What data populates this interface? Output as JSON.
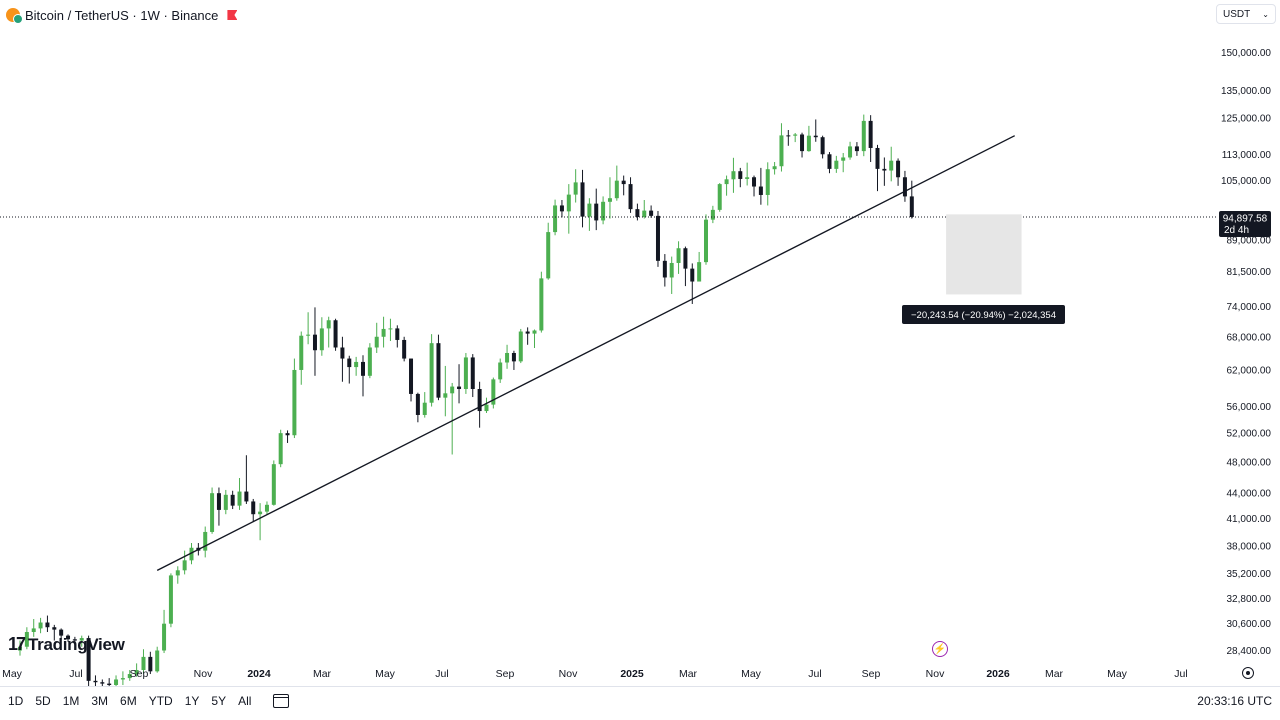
{
  "header": {
    "symbol": "Bitcoin / TetherUS · 1W · Binance",
    "logo_icon": "bitcoin-icon",
    "flag_icon": "flag-icon"
  },
  "currency": {
    "label": "USDT",
    "icon": "chevron-down-icon"
  },
  "watermark": {
    "text": "TradingView"
  },
  "price_label": {
    "value": "94,897.58",
    "countdown": "2d 4h"
  },
  "measure": {
    "text": "−20,243.54 (−20.94%) −2,024,354"
  },
  "bottom": {
    "ranges": [
      "1D",
      "5D",
      "1M",
      "3M",
      "6M",
      "YTD",
      "1Y",
      "5Y",
      "All"
    ],
    "time": "20:33:16 UTC"
  },
  "colors": {
    "up": "#4caf50",
    "down": "#131722",
    "line": "#131722",
    "measure_fill": "#e6e6e6"
  },
  "chart_data": {
    "type": "candlestick",
    "scale": "log",
    "ylim": [
      27000,
      160000
    ],
    "y_ticks": [
      150000,
      135000,
      125000,
      113000,
      105000,
      97000,
      89000,
      81500,
      74000,
      68000,
      62000,
      56000,
      52000,
      48000,
      44000,
      41000,
      38000,
      35200,
      32800,
      30600,
      28400
    ],
    "y_tick_labels": [
      "150,000.00",
      "135,000.00",
      "125,000.00",
      "113,000.00",
      "105,000.00",
      "97,000.00",
      "89,000.00",
      "81,500.00",
      "74,000.00",
      "68,000.00",
      "62,000.00",
      "56,000.00",
      "52,000.00",
      "48,000.00",
      "44,000.00",
      "41,000.00",
      "38,000.00",
      "35,200.00",
      "32,800.00",
      "30,600.00",
      "28,400.00"
    ],
    "x_ticks": [
      "May",
      "Jul",
      "Sep",
      "Nov",
      "2024",
      "Mar",
      "May",
      "Jul",
      "Sep",
      "Nov",
      "2025",
      "Mar",
      "May",
      "Jul",
      "Sep",
      "Nov",
      "2026",
      "Mar",
      "May",
      "Jul"
    ],
    "x_tick_bold": [
      "2024",
      "2025",
      "2026"
    ],
    "candles": [
      [
        28400,
        28700,
        29200,
        28000
      ],
      [
        28700,
        29900,
        30300,
        28500
      ],
      [
        29900,
        30200,
        31000,
        29500
      ],
      [
        30200,
        30700,
        31100,
        29800
      ],
      [
        30700,
        30300,
        31300,
        29900
      ],
      [
        30300,
        30100,
        30500,
        29200
      ],
      [
        30100,
        29600,
        30200,
        29300
      ],
      [
        29600,
        29300,
        29700,
        29100
      ],
      [
        29300,
        29200,
        29500,
        28900
      ],
      [
        29200,
        29400,
        29600,
        28700
      ],
      [
        29400,
        26100,
        29600,
        25400
      ],
      [
        26100,
        26000,
        26500,
        25600
      ],
      [
        26000,
        25900,
        26200,
        25700
      ],
      [
        25900,
        25800,
        26300,
        25300
      ],
      [
        25800,
        26200,
        26500,
        25400
      ],
      [
        26200,
        26300,
        26800,
        25800
      ],
      [
        26300,
        26600,
        26900,
        26100
      ],
      [
        26600,
        26900,
        27400,
        26400
      ],
      [
        26900,
        27900,
        28500,
        26600
      ],
      [
        27900,
        26800,
        28300,
        26600
      ],
      [
        26800,
        28400,
        28700,
        26700
      ],
      [
        28400,
        30600,
        31800,
        28200
      ],
      [
        30600,
        35000,
        35200,
        30300
      ],
      [
        35000,
        35500,
        35900,
        34200
      ],
      [
        35500,
        36500,
        37500,
        35100
      ],
      [
        36500,
        37800,
        38300,
        36100
      ],
      [
        37800,
        37500,
        38300,
        37000
      ],
      [
        37500,
        39500,
        40100,
        36800
      ],
      [
        39500,
        44000,
        44700,
        39300
      ],
      [
        44000,
        42000,
        44700,
        40200
      ],
      [
        42000,
        43800,
        44400,
        41500
      ],
      [
        43800,
        42500,
        44300,
        42100
      ],
      [
        42500,
        44200,
        45900,
        42000
      ],
      [
        44200,
        43000,
        48900,
        42700
      ],
      [
        43000,
        41500,
        43300,
        40600
      ],
      [
        41500,
        41800,
        42800,
        38600
      ],
      [
        41800,
        42600,
        43000,
        41500
      ],
      [
        42600,
        47700,
        48200,
        42500
      ],
      [
        47700,
        52000,
        52500,
        47300
      ],
      [
        52000,
        51700,
        52400,
        50600
      ],
      [
        51700,
        62000,
        64000,
        51300
      ],
      [
        62000,
        68200,
        69000,
        59500
      ],
      [
        68200,
        68400,
        72800,
        66600
      ],
      [
        68400,
        65500,
        73800,
        61000
      ],
      [
        65500,
        69600,
        71800,
        64500
      ],
      [
        69600,
        71200,
        71900,
        66000
      ],
      [
        71200,
        66000,
        71500,
        65400
      ],
      [
        66000,
        64000,
        68000,
        60000
      ],
      [
        64000,
        62500,
        64500,
        59700
      ],
      [
        62500,
        63400,
        64300,
        61000
      ],
      [
        63400,
        61000,
        64600,
        57600
      ],
      [
        61000,
        66000,
        66800,
        60600
      ],
      [
        66000,
        68000,
        70700,
        65000
      ],
      [
        68000,
        69500,
        71900,
        66000
      ],
      [
        69500,
        69600,
        71500,
        67200
      ],
      [
        69600,
        67400,
        70200,
        66000
      ],
      [
        67400,
        64000,
        68000,
        63500
      ],
      [
        64000,
        58000,
        64000,
        56800
      ],
      [
        58000,
        54700,
        58200,
        53600
      ],
      [
        54700,
        56600,
        58300,
        54300
      ],
      [
        56600,
        66800,
        68500,
        56000
      ],
      [
        66800,
        57400,
        68400,
        57000
      ],
      [
        57400,
        58100,
        62700,
        54500
      ],
      [
        58100,
        59200,
        59800,
        49000
      ],
      [
        59200,
        58800,
        63000,
        56500
      ],
      [
        58800,
        64200,
        65000,
        58000
      ],
      [
        64200,
        58800,
        64800,
        57500
      ],
      [
        58800,
        55300,
        60000,
        52800
      ],
      [
        55300,
        56300,
        57400,
        55000
      ],
      [
        56300,
        60400,
        60700,
        55700
      ],
      [
        60400,
        63300,
        64000,
        59800
      ],
      [
        63300,
        65000,
        66500,
        62200
      ],
      [
        65000,
        63500,
        65400,
        62000
      ],
      [
        63500,
        69000,
        69500,
        63200
      ],
      [
        69000,
        68600,
        69800,
        66500
      ],
      [
        68600,
        69200,
        69400,
        65900
      ],
      [
        69200,
        80000,
        81500,
        68800
      ],
      [
        80000,
        91000,
        93400,
        79700
      ],
      [
        91000,
        98000,
        99600,
        90200
      ],
      [
        98000,
        96400,
        99500,
        94800
      ],
      [
        96400,
        101000,
        104000,
        90600
      ],
      [
        101000,
        104500,
        108400,
        98800
      ],
      [
        104500,
        95000,
        108200,
        92200
      ],
      [
        95000,
        98500,
        100000,
        91300
      ],
      [
        98500,
        94000,
        102700,
        91500
      ],
      [
        94000,
        99000,
        100500,
        93000
      ],
      [
        99000,
        100000,
        106000,
        94500
      ],
      [
        100000,
        105000,
        109500,
        99300
      ],
      [
        105000,
        104000,
        106500,
        100800
      ],
      [
        104000,
        97000,
        106000,
        96000
      ],
      [
        97000,
        94900,
        98500,
        94000
      ],
      [
        94900,
        96600,
        99500,
        94500
      ],
      [
        96600,
        95200,
        98000,
        94700
      ],
      [
        95200,
        84000,
        96500,
        82600
      ],
      [
        84000,
        80200,
        85600,
        78200
      ],
      [
        80200,
        83500,
        85000,
        76600
      ],
      [
        83500,
        87000,
        88700,
        81000
      ],
      [
        87000,
        82200,
        87400,
        78300
      ],
      [
        82200,
        79300,
        83400,
        74500
      ],
      [
        79300,
        83700,
        86100,
        79300
      ],
      [
        83700,
        94200,
        95600,
        83100
      ],
      [
        94200,
        96800,
        97900,
        93300
      ],
      [
        96800,
        104000,
        104300,
        96300
      ],
      [
        104000,
        105400,
        106500,
        100700
      ],
      [
        105400,
        107800,
        111900,
        101500
      ],
      [
        107800,
        105500,
        108800,
        103100
      ],
      [
        105500,
        106000,
        110400,
        103600
      ],
      [
        106000,
        103300,
        106500,
        100500
      ],
      [
        103300,
        100900,
        108800,
        98200
      ],
      [
        100900,
        108400,
        110500,
        98000
      ],
      [
        108400,
        109300,
        110600,
        106800
      ],
      [
        109300,
        119100,
        123200,
        107700
      ],
      [
        119100,
        119000,
        120900,
        115700
      ],
      [
        119000,
        119400,
        119900,
        116900
      ],
      [
        119400,
        114000,
        120000,
        112000
      ],
      [
        114000,
        119000,
        122300,
        113800
      ],
      [
        119000,
        118500,
        124500,
        117000
      ],
      [
        118500,
        113000,
        119000,
        111700
      ],
      [
        113000,
        108500,
        113700,
        107200
      ],
      [
        108500,
        111000,
        112500,
        107300
      ],
      [
        111000,
        112000,
        113400,
        107500
      ],
      [
        112000,
        115500,
        117000,
        111300
      ],
      [
        115500,
        114000,
        116900,
        112500
      ],
      [
        114000,
        124000,
        126200,
        112400
      ],
      [
        124000,
        115000,
        126000,
        110600
      ],
      [
        115000,
        108500,
        116000,
        102000
      ],
      [
        108500,
        108000,
        112000,
        103500
      ],
      [
        108000,
        111000,
        115400,
        104800
      ],
      [
        111000,
        106000,
        111700,
        103500
      ],
      [
        106000,
        100500,
        107900,
        99000
      ],
      [
        100500,
        94900,
        105000,
        94500
      ]
    ],
    "trendline": {
      "start": {
        "candle": 20,
        "value": 35500
      },
      "end": {
        "candle": 145,
        "value": 119000
      }
    },
    "current_price": 94897.58,
    "measure": {
      "from": 95600,
      "to": 76500,
      "candle_start": 135,
      "candle_end": 146
    }
  }
}
